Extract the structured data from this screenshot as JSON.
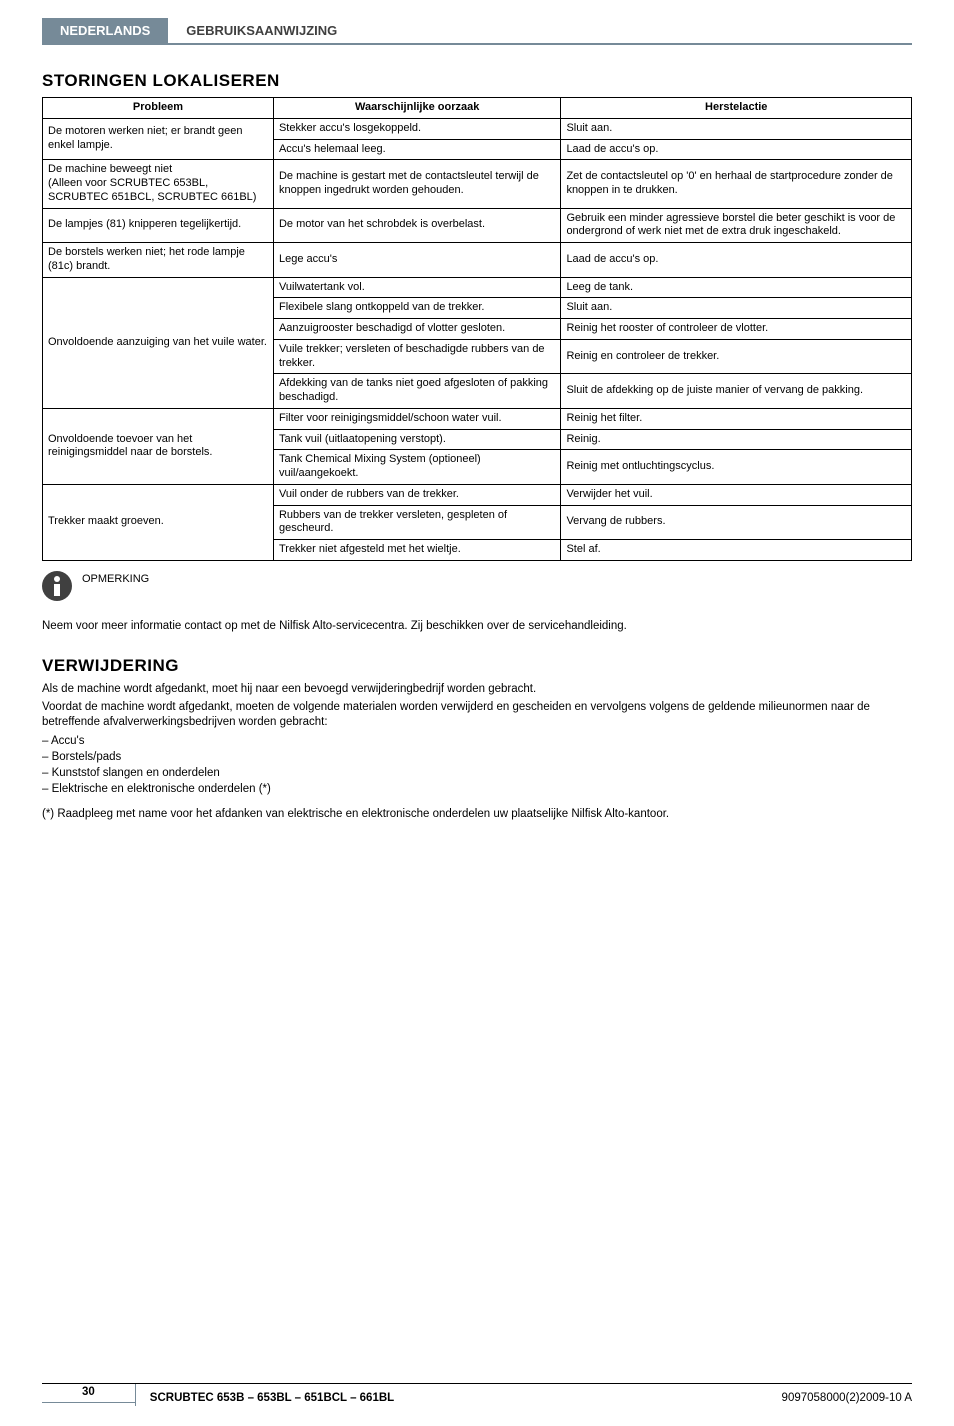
{
  "header": {
    "lang": "NEDERLANDS",
    "title": "GEBRUIKSAANWIJZING"
  },
  "section1": {
    "heading": "STORINGEN LOKALISEREN",
    "columns": {
      "problem": "Probleem",
      "cause": "Waarschijnlijke oorzaak",
      "action": "Herstelactie"
    },
    "rows": [
      {
        "problem": "De motoren werken niet; er brandt geen enkel lampje.",
        "causes": [
          {
            "cause": "Stekker accu's losgekoppeld.",
            "action": "Sluit aan."
          },
          {
            "cause": "Accu's helemaal leeg.",
            "action": "Laad de accu's op."
          }
        ]
      },
      {
        "problem": "De machine beweegt niet\n(Alleen voor SCRUBTEC 653BL, SCRUBTEC 651BCL, SCRUBTEC 661BL)",
        "causes": [
          {
            "cause": "De machine is gestart met de contactsleutel terwijl de knoppen ingedrukt worden gehouden.",
            "action": "Zet de contactsleutel op '0' en herhaal de startprocedure zonder de knoppen in te drukken."
          }
        ]
      },
      {
        "problem": "De lampjes (81) knipperen tegelijkertijd.",
        "causes": [
          {
            "cause": "De motor van het schrobdek is overbelast.",
            "action": "Gebruik een minder agressieve borstel die beter geschikt is voor de ondergrond of werk niet met de extra druk ingeschakeld."
          }
        ]
      },
      {
        "problem": "De borstels werken niet; het rode lampje (81c) brandt.",
        "causes": [
          {
            "cause": "Lege accu's",
            "action": "Laad de accu's op."
          }
        ]
      },
      {
        "problem": "Onvoldoende aanzuiging van het vuile water.",
        "causes": [
          {
            "cause": "Vuilwatertank vol.",
            "action": "Leeg de tank."
          },
          {
            "cause": "Flexibele slang ontkoppeld van de trekker.",
            "action": "Sluit aan."
          },
          {
            "cause": "Aanzuigrooster beschadigd of vlotter gesloten.",
            "action": "Reinig het rooster of controleer de vlotter."
          },
          {
            "cause": "Vuile trekker; versleten of beschadigde rubbers van de trekker.",
            "action": "Reinig en controleer de trekker."
          },
          {
            "cause": "Afdekking van de tanks niet goed afgesloten of pakking beschadigd.",
            "action": "Sluit de afdekking op de juiste manier of vervang de pakking."
          }
        ]
      },
      {
        "problem": "Onvoldoende toevoer van het reinigingsmiddel naar de borstels.",
        "causes": [
          {
            "cause": "Filter voor reinigingsmiddel/schoon water vuil.",
            "action": "Reinig het filter."
          },
          {
            "cause": "Tank vuil (uitlaatopening verstopt).",
            "action": "Reinig."
          },
          {
            "cause": "Tank Chemical Mixing System (optioneel) vuil/aangekoekt.",
            "action": "Reinig met ontluchtingscyclus."
          }
        ]
      },
      {
        "problem": "Trekker maakt groeven.",
        "causes": [
          {
            "cause": "Vuil onder de rubbers van de trekker.",
            "action": "Verwijder het vuil."
          },
          {
            "cause": "Rubbers van de trekker versleten, gespleten of gescheurd.",
            "action": "Vervang de rubbers."
          },
          {
            "cause": "Trekker niet afgesteld met het wieltje.",
            "action": "Stel af."
          }
        ]
      }
    ],
    "note_label": "OPMERKING",
    "note_text": "Neem voor meer informatie contact op met de Nilfisk Alto-servicecentra. Zij beschikken over de servicehandleiding."
  },
  "section2": {
    "heading": "VERWIJDERING",
    "intro1": "Als de machine wordt afgedankt, moet hij naar een bevoegd verwijderingbedrijf worden gebracht.",
    "intro2": "Voordat de machine wordt afgedankt, moeten de volgende materialen worden verwijderd en gescheiden en vervolgens volgens de geldende milieunormen naar de betreffende afvalverwerkingsbedrijven worden gebracht:",
    "items": [
      "Accu's",
      "Borstels/pads",
      "Kunststof slangen en onderdelen",
      "Elektrische en elektronische onderdelen (*)"
    ],
    "footnote": "(*)   Raadpleeg met name voor het afdanken van elektrische en elektronische onderdelen uw plaatselijke Nilfisk Alto-kantoor."
  },
  "footer": {
    "page": "30",
    "model": "SCRUBTEC 653B – 653BL – 651BCL – 661BL",
    "doc": "9097058000(2)2009-10 A"
  },
  "colors": {
    "accent": "#768a98",
    "text": "#000000",
    "bg": "#ffffff"
  }
}
